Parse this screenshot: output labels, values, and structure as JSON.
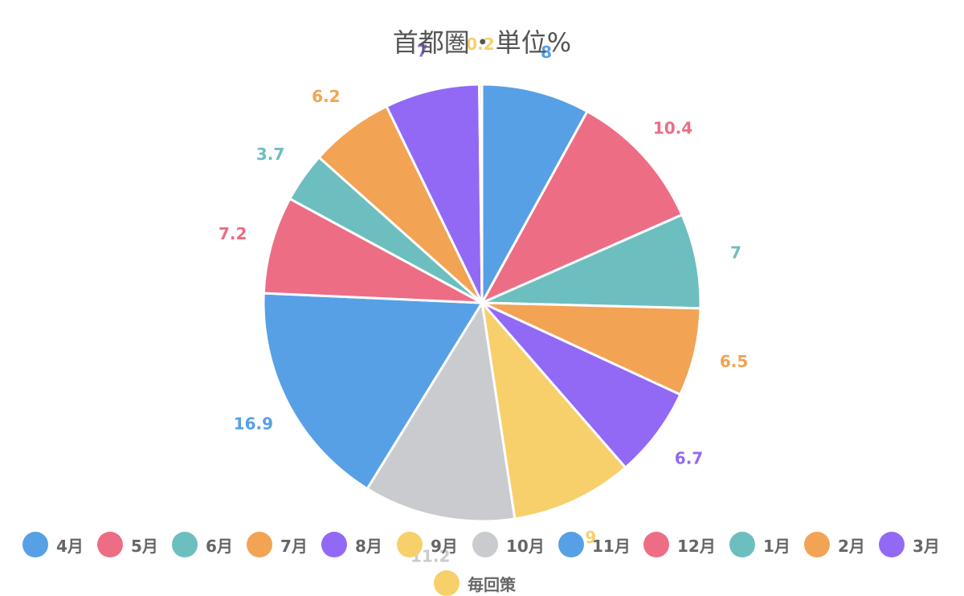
{
  "subtitle": "首都圏・単位%",
  "chart_data": {
    "type": "pie",
    "subtitle": "首都圏・単位%",
    "categories": [
      "4月",
      "5月",
      "6月",
      "7月",
      "8月",
      "9月",
      "10月",
      "11月",
      "12月",
      "1月",
      "2月",
      "3月",
      "毎回策"
    ],
    "values": [
      8,
      10.4,
      7,
      6.5,
      6.7,
      9,
      11.2,
      16.9,
      7.2,
      3.7,
      6.2,
      7,
      0.2
    ],
    "value_labels": [
      "8",
      "10.4",
      "7",
      "6.5",
      "6.7",
      "9",
      "11.2",
      "16.9",
      "7.2",
      "3.7",
      "6.2",
      "7",
      "0.2"
    ],
    "colors": [
      "#57a0e5",
      "#ed6d85",
      "#6dbebf",
      "#f2a354",
      "#9269f5",
      "#f7cf6b",
      "#c9cbcf",
      "#57a0e5",
      "#ed6d85",
      "#6dbebf",
      "#f2a354",
      "#9269f5",
      "#f7cf6b"
    ],
    "legend_position": "bottom",
    "start_angle_deg": 0,
    "direction": "clockwise"
  }
}
